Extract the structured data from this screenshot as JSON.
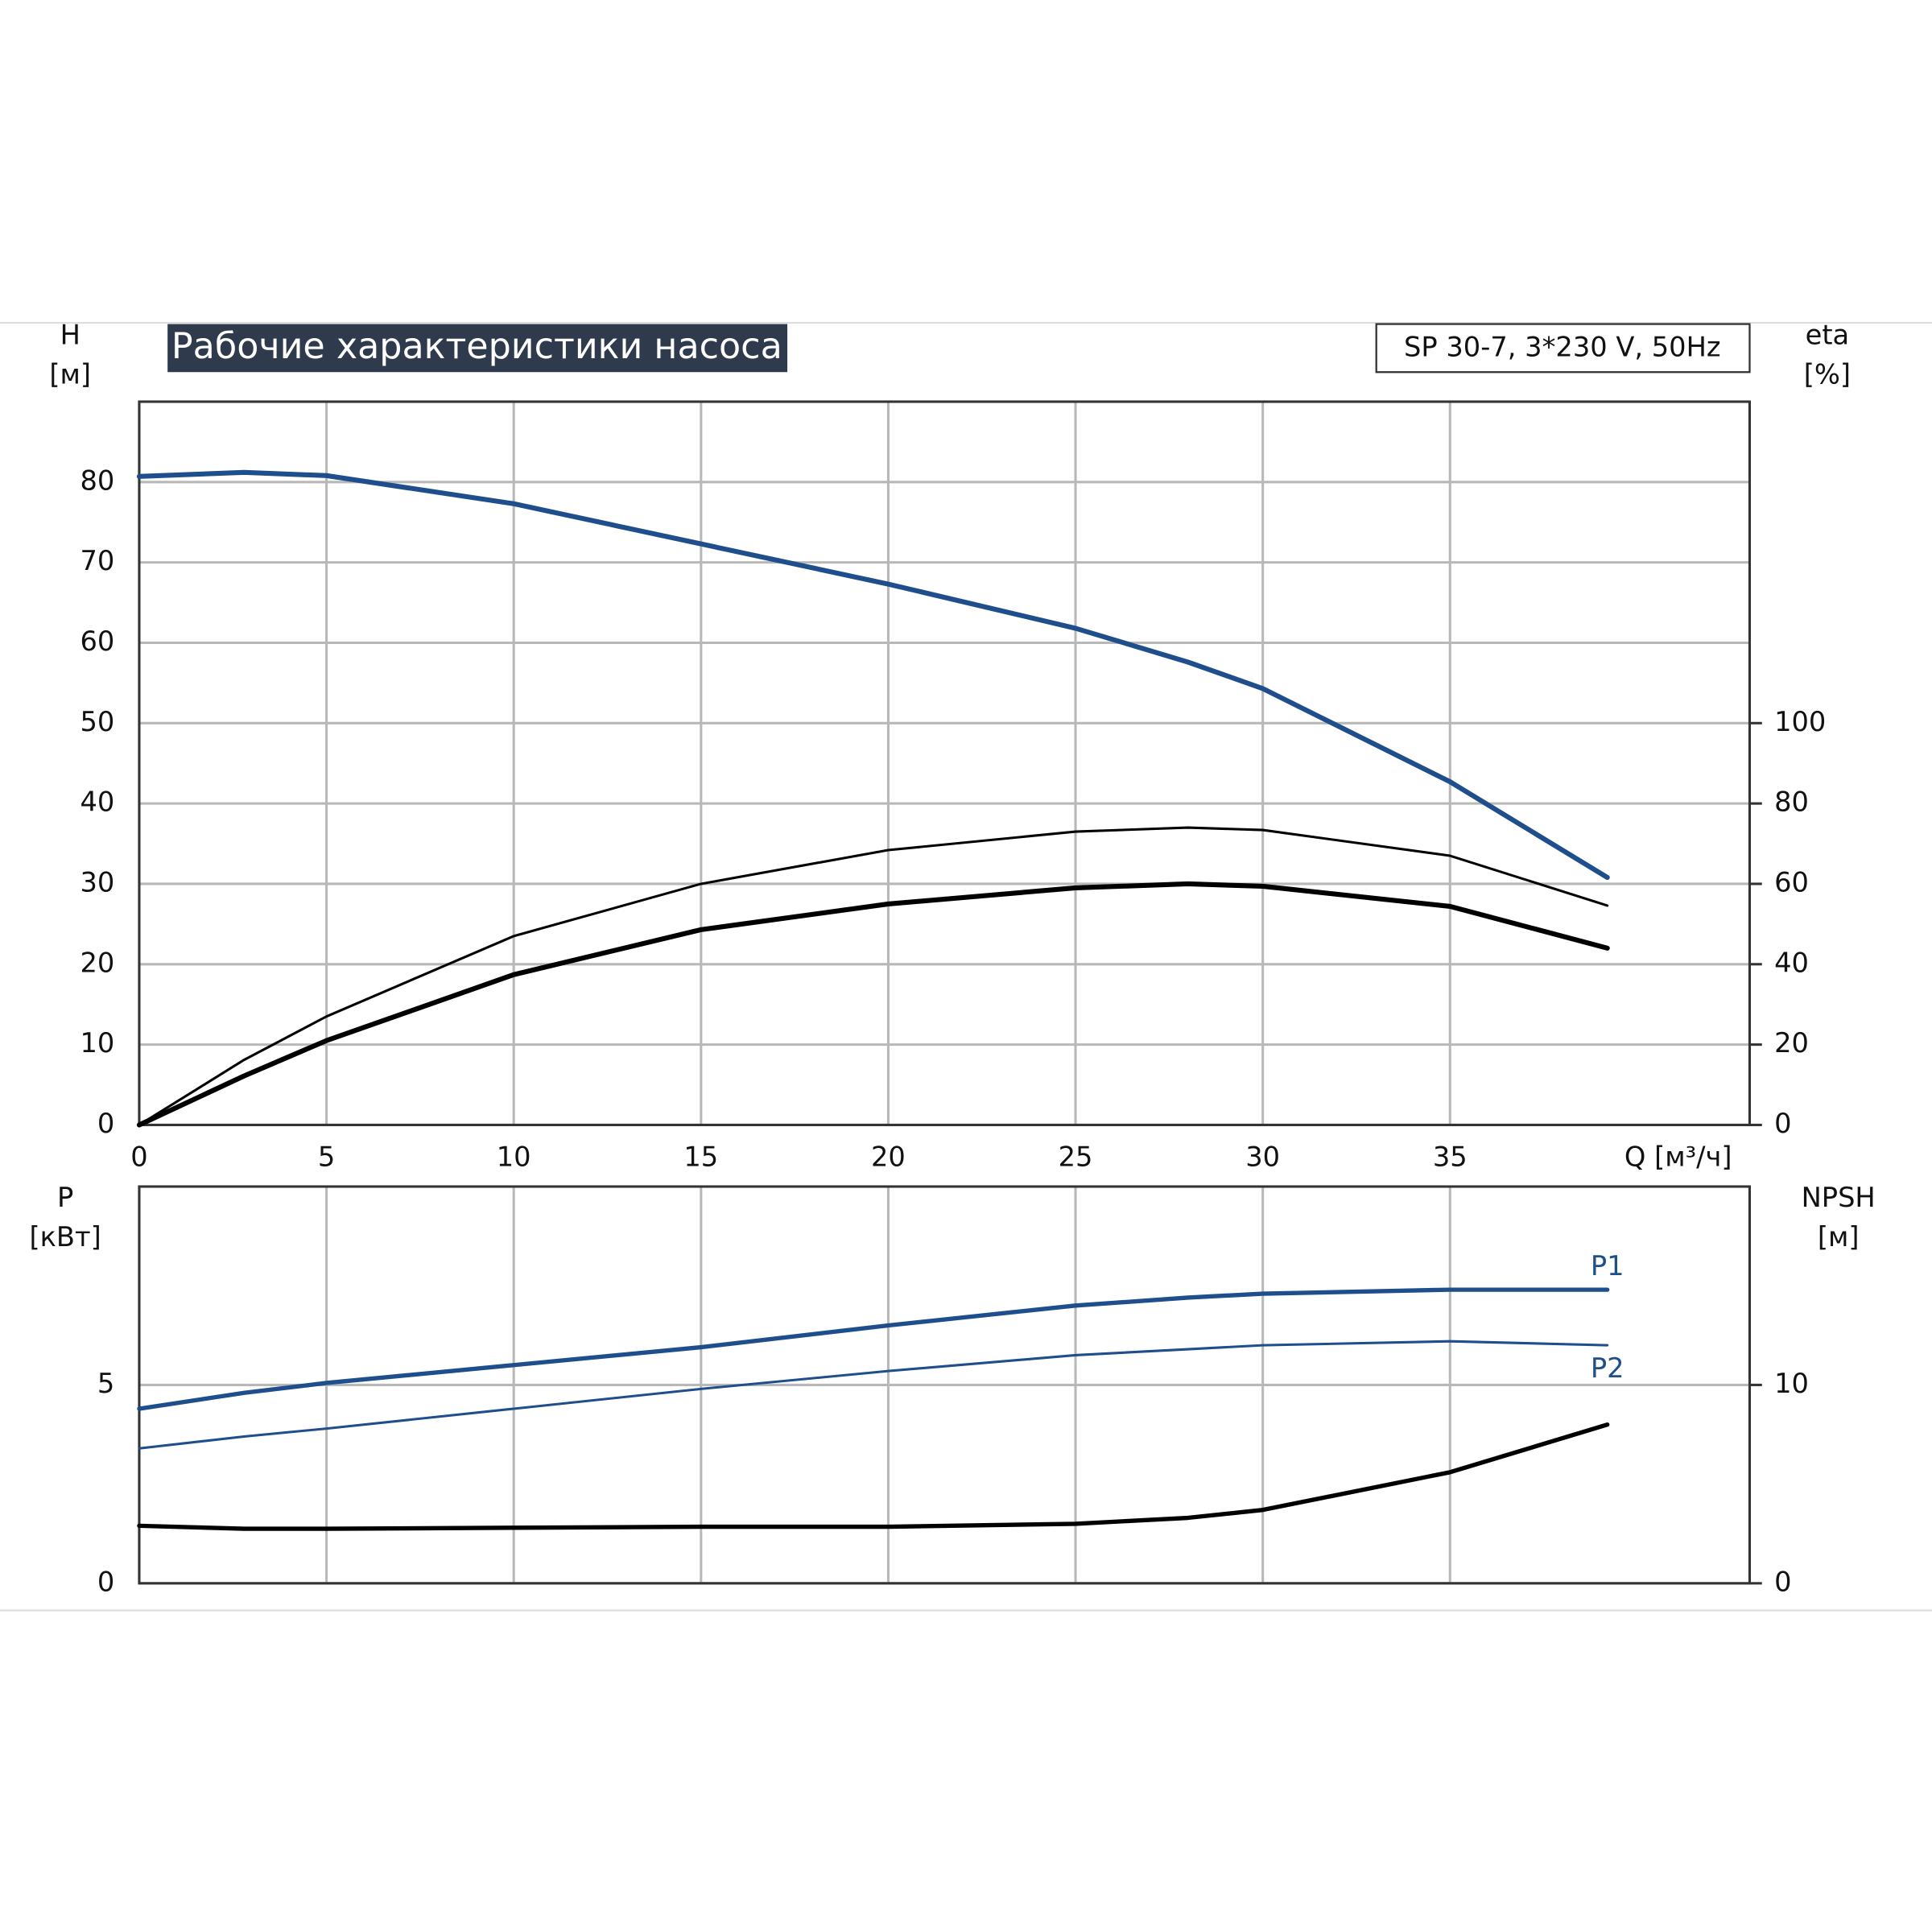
{
  "chart_data": [
    {
      "type": "line",
      "title": "Рабочие характеристики насоса",
      "annotation": "SP 30-7, 3*230 V, 50Hz",
      "xlabel": "Q [м³/ч]",
      "ylabel": "H",
      "yunit": "[м]",
      "y2label": "eta",
      "y2unit": "[%]",
      "x": [
        0,
        2.8,
        5,
        10,
        15,
        20,
        25,
        28,
        30,
        35,
        39.2
      ],
      "xlim": [
        0,
        43
      ],
      "xticks": [
        0,
        5,
        10,
        15,
        20,
        25,
        30,
        35
      ],
      "ylim": [
        0,
        90
      ],
      "yticks": [
        0,
        10,
        20,
        30,
        40,
        50,
        60,
        70,
        80
      ],
      "y2lim": [
        0,
        180
      ],
      "y2ticks": [
        0,
        20,
        40,
        60,
        80,
        100
      ],
      "grid": true,
      "series": [
        {
          "color": "#1f4e8c",
          "width": 4,
          "values": [
            80.7,
            81.2,
            80.8,
            77.3,
            72.3,
            67.3,
            61.8,
            57.6,
            54.3,
            42.7,
            30.8
          ]
        },
        {
          "color": "#000000",
          "width": 2,
          "axis": "y2",
          "values": [
            0,
            16.2,
            27,
            47,
            60,
            68.4,
            73,
            74,
            73.4,
            67,
            54.6
          ]
        },
        {
          "color": "#000000",
          "width": 4,
          "axis": "y2",
          "values": [
            0,
            12.2,
            21,
            37.4,
            48.6,
            55,
            59,
            60,
            59.4,
            54.4,
            44
          ]
        }
      ]
    },
    {
      "type": "line",
      "ylabel": "P",
      "yunit": "[кВт]",
      "y2label": "NPSH",
      "y2unit": "[м]",
      "x": [
        0,
        2.8,
        5,
        10,
        15,
        20,
        25,
        28,
        30,
        35,
        39.2
      ],
      "xlim": [
        0,
        43
      ],
      "ylim": [
        0,
        10
      ],
      "yticks": [
        0,
        5
      ],
      "y2lim": [
        0,
        20
      ],
      "y2ticks": [
        0,
        10
      ],
      "grid": true,
      "series": [
        {
          "name": "P1",
          "color": "#1f4e8c",
          "width": 3.5,
          "values": [
            4.4,
            4.8,
            5.05,
            5.5,
            5.95,
            6.5,
            7.0,
            7.2,
            7.3,
            7.4,
            7.4
          ]
        },
        {
          "name": "P2",
          "color": "#1f4e8c",
          "width": 2,
          "values": [
            3.4,
            3.7,
            3.9,
            4.4,
            4.9,
            5.35,
            5.75,
            5.9,
            6.0,
            6.1,
            6.0
          ]
        },
        {
          "color": "#000000",
          "width": 3.5,
          "axis": "y2",
          "values": [
            2.9,
            2.75,
            2.75,
            2.8,
            2.85,
            2.85,
            3.0,
            3.3,
            3.7,
            5.6,
            8.0
          ]
        }
      ]
    }
  ]
}
